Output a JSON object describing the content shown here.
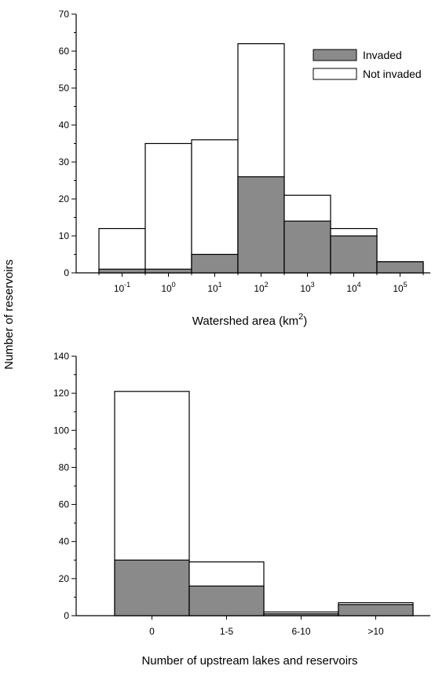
{
  "shared_ylabel": "Number of reservoirs",
  "colors": {
    "invaded": "#8a8a8a",
    "not_invaded": "#ffffff",
    "edge": "#000000"
  },
  "legend": {
    "position": "top-right",
    "items": [
      "Invaded",
      "Not invaded"
    ]
  },
  "chart_data": [
    {
      "type": "bar",
      "stacked": true,
      "xlabel": "Watershed area (km",
      "xlabel_sup": "2",
      "xlabel_end": ")",
      "ylabel": "Number of reservoirs",
      "ylim": [
        0,
        70
      ],
      "yticks": [
        0,
        10,
        20,
        30,
        40,
        50,
        60,
        70
      ],
      "categories": [
        {
          "base": "10",
          "exp": "-1"
        },
        {
          "base": "10",
          "exp": "0"
        },
        {
          "base": "10",
          "exp": "1"
        },
        {
          "base": "10",
          "exp": "2"
        },
        {
          "base": "10",
          "exp": "3"
        },
        {
          "base": "10",
          "exp": "4"
        },
        {
          "base": "10",
          "exp": "5"
        }
      ],
      "series": [
        {
          "name": "Invaded",
          "values": [
            1,
            1,
            5,
            26,
            14,
            10,
            3
          ]
        },
        {
          "name": "Not invaded",
          "values": [
            11,
            34,
            31,
            36,
            7,
            2,
            0
          ]
        }
      ],
      "totals": [
        12,
        35,
        36,
        62,
        21,
        12,
        3
      ],
      "legend": "top-right"
    },
    {
      "type": "bar",
      "stacked": true,
      "xlabel": "Number of upstream lakes and reservoirs",
      "ylabel": "Number of reservoirs",
      "ylim": [
        0,
        140
      ],
      "yticks": [
        0,
        20,
        40,
        60,
        80,
        100,
        120,
        140
      ],
      "categories": [
        "0",
        "1-5",
        "6-10",
        ">10"
      ],
      "series": [
        {
          "name": "Invaded",
          "values": [
            30,
            16,
            1,
            6
          ]
        },
        {
          "name": "Not invaded",
          "values": [
            91,
            13,
            1,
            1
          ]
        }
      ],
      "totals": [
        121,
        29,
        2,
        7
      ]
    }
  ]
}
